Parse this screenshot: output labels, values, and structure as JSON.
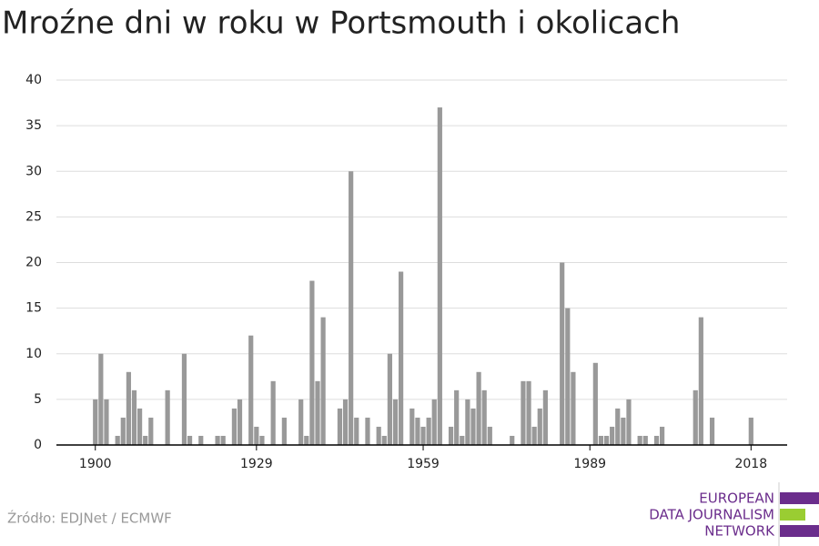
{
  "chart_data": {
    "type": "bar",
    "title": "Mroźne dni w roku w Portsmouth i okolicach",
    "x": [
      1900,
      1901,
      1902,
      1903,
      1904,
      1905,
      1906,
      1907,
      1908,
      1909,
      1910,
      1911,
      1912,
      1913,
      1914,
      1915,
      1916,
      1917,
      1918,
      1919,
      1920,
      1921,
      1922,
      1923,
      1924,
      1925,
      1926,
      1927,
      1928,
      1929,
      1930,
      1931,
      1932,
      1933,
      1934,
      1935,
      1936,
      1937,
      1938,
      1939,
      1940,
      1941,
      1942,
      1943,
      1944,
      1945,
      1946,
      1947,
      1948,
      1949,
      1950,
      1951,
      1952,
      1953,
      1954,
      1955,
      1956,
      1957,
      1958,
      1959,
      1960,
      1961,
      1962,
      1963,
      1964,
      1965,
      1966,
      1967,
      1968,
      1969,
      1970,
      1971,
      1972,
      1973,
      1974,
      1975,
      1976,
      1977,
      1978,
      1979,
      1980,
      1981,
      1982,
      1983,
      1984,
      1985,
      1986,
      1987,
      1988,
      1989,
      1990,
      1991,
      1992,
      1993,
      1994,
      1995,
      1996,
      1997,
      1998,
      1999,
      2000,
      2001,
      2002,
      2003,
      2004,
      2005,
      2006,
      2007,
      2008,
      2009,
      2010,
      2011,
      2012,
      2013,
      2014,
      2015,
      2016,
      2017,
      2018
    ],
    "values": [
      5,
      10,
      5,
      0,
      1,
      3,
      8,
      6,
      4,
      1,
      3,
      0,
      0,
      6,
      0,
      0,
      10,
      1,
      0,
      1,
      0,
      0,
      1,
      1,
      0,
      4,
      5,
      0,
      12,
      2,
      1,
      0,
      7,
      0,
      3,
      0,
      0,
      5,
      1,
      18,
      7,
      14,
      0,
      0,
      4,
      5,
      30,
      3,
      0,
      3,
      0,
      2,
      1,
      10,
      5,
      19,
      0,
      4,
      3,
      2,
      3,
      5,
      37,
      0,
      2,
      6,
      1,
      5,
      4,
      8,
      6,
      2,
      0,
      0,
      0,
      1,
      0,
      7,
      7,
      2,
      4,
      6,
      0,
      0,
      20,
      15,
      8,
      0,
      0,
      0,
      9,
      1,
      1,
      2,
      4,
      3,
      5,
      0,
      1,
      1,
      0,
      1,
      2,
      0,
      0,
      0,
      0,
      0,
      6,
      14,
      0,
      3,
      0,
      0,
      0,
      0,
      0,
      0,
      3
    ],
    "color": "#999999",
    "xlim": [
      1893,
      2024.5
    ],
    "xticks": [
      1900,
      1929,
      1959,
      1989,
      2018
    ],
    "ylim": [
      0,
      40
    ],
    "yticks": [
      0,
      5,
      10,
      15,
      20,
      25,
      30,
      35,
      40
    ],
    "grid": true,
    "source": "Źródło: EDJNet / ECMWF",
    "logo": [
      "EUROPEAN",
      "DATA JOURNALISM",
      "NETWORK"
    ]
  }
}
